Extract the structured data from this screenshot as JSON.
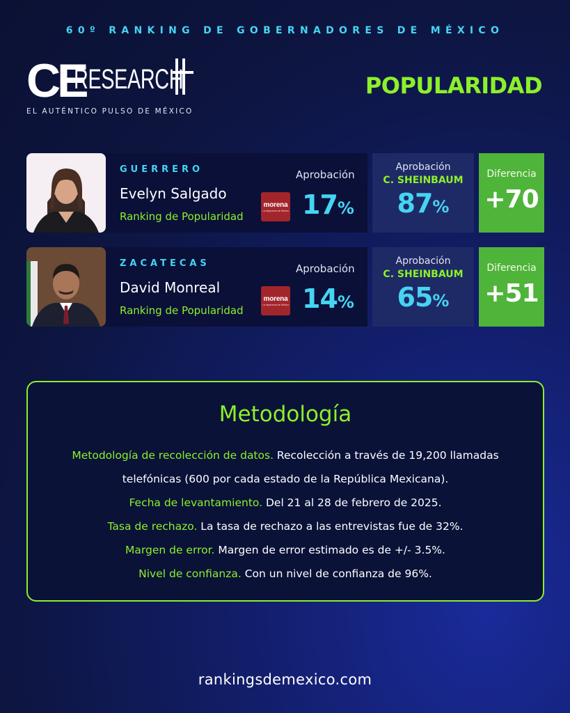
{
  "header": {
    "top_title": "60º RANKING DE GOBERNADORES DE MÉXICO",
    "logo_ce": "CE",
    "logo_research": "RESEARCH",
    "logo_tagline": "EL AUTÉNTICO PULSO DE MÉXICO",
    "section_title": "POPULARIDAD"
  },
  "governors": [
    {
      "state": "GUERRERO",
      "name": "Evelyn Salgado",
      "ranking_label": "Ranking de Popularidad",
      "party_logo": "morena",
      "party_tagline": "La esperanza de México",
      "approval_label": "Aprobación",
      "approval_value": "17",
      "approval_unit": "%",
      "sheinbaum_label": "Aprobación",
      "sheinbaum_name": "C. SHEINBAUM",
      "sheinbaum_value": "87",
      "sheinbaum_unit": "%",
      "difference_label": "Diferencia",
      "difference_value": "+70"
    },
    {
      "state": "ZACATECAS",
      "name": "David Monreal",
      "ranking_label": "Ranking de Popularidad",
      "party_logo": "morena",
      "party_tagline": "La esperanza de México",
      "approval_label": "Aprobación",
      "approval_value": "14",
      "approval_unit": "%",
      "sheinbaum_label": "Aprobación",
      "sheinbaum_name": "C. SHEINBAUM",
      "sheinbaum_value": "65",
      "sheinbaum_unit": "%",
      "difference_label": "Diferencia",
      "difference_value": "+51"
    }
  ],
  "methodology": {
    "title": "Metodología",
    "items": [
      {
        "label": "Metodología de recolección de datos.",
        "text": " Recolección a través de 19,200 llamadas telefónicas (600 por cada estado de la República Mexicana)."
      },
      {
        "label": "Fecha de levantamiento.",
        "text": " Del 21 al 28 de febrero de 2025."
      },
      {
        "label": "Tasa de rechazo.",
        "text": " La tasa de rechazo a las entrevistas fue de 32%."
      },
      {
        "label": "Margen de error.",
        "text": " Margen de error estimado es de +/- 3.5%."
      },
      {
        "label": "Nivel de confianza.",
        "text": " Con un nivel de confianza de 96%."
      }
    ]
  },
  "footer": {
    "url": "rankingsdemexico.com"
  },
  "colors": {
    "accent_green": "#8cf02a",
    "accent_cyan": "#46d4f2",
    "diff_green": "#4fb43a",
    "morena_red": "#a3252c",
    "background": "#0d1540"
  }
}
